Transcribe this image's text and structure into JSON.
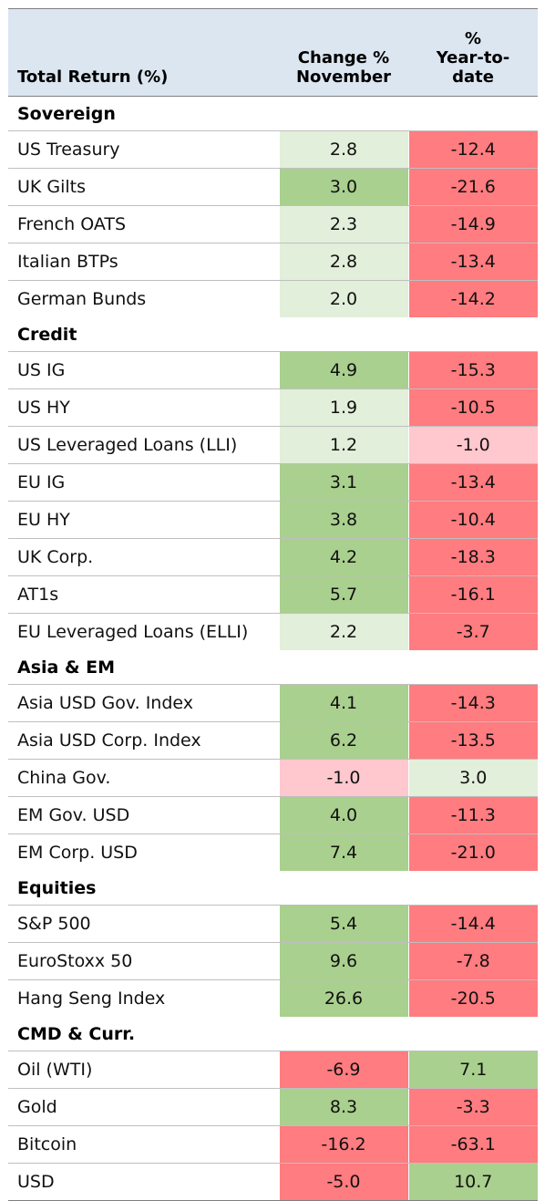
{
  "header": {
    "col1": "Total Return (%)",
    "col2_line1": "Change %",
    "col2_line2": "November",
    "col3_line1": "%",
    "col3_line2": "Year-to-",
    "col3_line3": "date"
  },
  "colors": {
    "light_green": "#e2efda",
    "green": "#a9d08e",
    "red": "#ff7c80",
    "light_red": "#ffc7ce"
  },
  "sections": [
    {
      "name": "Sovereign",
      "rows": [
        {
          "label": "US Treasury",
          "nov": "2.8",
          "ytd": "-12.4",
          "nov_color": "#e2efda",
          "ytd_color": "#ff7c80"
        },
        {
          "label": "UK Gilts",
          "nov": "3.0",
          "ytd": "-21.6",
          "nov_color": "#a9d08e",
          "ytd_color": "#ff7c80"
        },
        {
          "label": "French OATS",
          "nov": "2.3",
          "ytd": "-14.9",
          "nov_color": "#e2efda",
          "ytd_color": "#ff7c80"
        },
        {
          "label": "Italian BTPs",
          "nov": "2.8",
          "ytd": "-13.4",
          "nov_color": "#e2efda",
          "ytd_color": "#ff7c80"
        },
        {
          "label": "German Bunds",
          "nov": "2.0",
          "ytd": "-14.2",
          "nov_color": "#e2efda",
          "ytd_color": "#ff7c80"
        }
      ]
    },
    {
      "name": "Credit",
      "rows": [
        {
          "label": "US IG",
          "nov": "4.9",
          "ytd": "-15.3",
          "nov_color": "#a9d08e",
          "ytd_color": "#ff7c80"
        },
        {
          "label": "US HY",
          "nov": "1.9",
          "ytd": "-10.5",
          "nov_color": "#e2efda",
          "ytd_color": "#ff7c80"
        },
        {
          "label": "US Leveraged Loans (LLI)",
          "nov": "1.2",
          "ytd": "-1.0",
          "nov_color": "#e2efda",
          "ytd_color": "#ffc7ce"
        },
        {
          "label": "EU IG",
          "nov": "3.1",
          "ytd": "-13.4",
          "nov_color": "#a9d08e",
          "ytd_color": "#ff7c80"
        },
        {
          "label": "EU HY",
          "nov": "3.8",
          "ytd": "-10.4",
          "nov_color": "#a9d08e",
          "ytd_color": "#ff7c80"
        },
        {
          "label": "UK Corp.",
          "nov": "4.2",
          "ytd": "-18.3",
          "nov_color": "#a9d08e",
          "ytd_color": "#ff7c80"
        },
        {
          "label": "AT1s",
          "nov": "5.7",
          "ytd": "-16.1",
          "nov_color": "#a9d08e",
          "ytd_color": "#ff7c80"
        },
        {
          "label": "EU Leveraged Loans (ELLI)",
          "nov": "2.2",
          "ytd": "-3.7",
          "nov_color": "#e2efda",
          "ytd_color": "#ff7c80"
        }
      ]
    },
    {
      "name": "Asia & EM",
      "rows": [
        {
          "label": "Asia USD Gov. Index",
          "nov": "4.1",
          "ytd": "-14.3",
          "nov_color": "#a9d08e",
          "ytd_color": "#ff7c80"
        },
        {
          "label": "Asia USD Corp. Index",
          "nov": "6.2",
          "ytd": "-13.5",
          "nov_color": "#a9d08e",
          "ytd_color": "#ff7c80"
        },
        {
          "label": "China Gov.",
          "nov": "-1.0",
          "ytd": "3.0",
          "nov_color": "#ffc7ce",
          "ytd_color": "#e2efda"
        },
        {
          "label": "EM Gov. USD",
          "nov": "4.0",
          "ytd": "-11.3",
          "nov_color": "#a9d08e",
          "ytd_color": "#ff7c80"
        },
        {
          "label": "EM Corp. USD",
          "nov": "7.4",
          "ytd": "-21.0",
          "nov_color": "#a9d08e",
          "ytd_color": "#ff7c80"
        }
      ]
    },
    {
      "name": "Equities",
      "rows": [
        {
          "label": "S&P 500",
          "nov": "5.4",
          "ytd": "-14.4",
          "nov_color": "#a9d08e",
          "ytd_color": "#ff7c80"
        },
        {
          "label": "EuroStoxx 50",
          "nov": "9.6",
          "ytd": "-7.8",
          "nov_color": "#a9d08e",
          "ytd_color": "#ff7c80"
        },
        {
          "label": "Hang Seng Index",
          "nov": "26.6",
          "ytd": "-20.5",
          "nov_color": "#a9d08e",
          "ytd_color": "#ff7c80"
        }
      ]
    },
    {
      "name": "CMD & Curr.",
      "rows": [
        {
          "label": "Oil (WTI)",
          "nov": "-6.9",
          "ytd": "7.1",
          "nov_color": "#ff7c80",
          "ytd_color": "#a9d08e"
        },
        {
          "label": "Gold",
          "nov": "8.3",
          "ytd": "-3.3",
          "nov_color": "#a9d08e",
          "ytd_color": "#ff7c80"
        },
        {
          "label": "Bitcoin",
          "nov": "-16.2",
          "ytd": "-63.1",
          "nov_color": "#ff7c80",
          "ytd_color": "#ff7c80"
        },
        {
          "label": "USD",
          "nov": "-5.0",
          "ytd": "10.7",
          "nov_color": "#ff7c80",
          "ytd_color": "#a9d08e"
        }
      ]
    }
  ]
}
